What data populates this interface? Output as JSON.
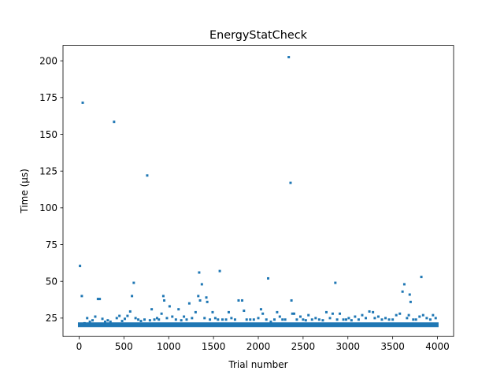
{
  "chart_data": {
    "type": "scatter",
    "title": "EnergyStatCheck",
    "xlabel": "Trial number",
    "ylabel": "Time (µs)",
    "xlim": [
      -180,
      4180
    ],
    "ylim": [
      12.5,
      210.5
    ],
    "xticks": [
      0,
      500,
      1000,
      1500,
      2000,
      2500,
      3000,
      3500,
      4000
    ],
    "yticks": [
      25,
      50,
      75,
      100,
      125,
      150,
      175,
      200
    ],
    "xtick_labels": [
      "0",
      "500",
      "1000",
      "1500",
      "2000",
      "2500",
      "3000",
      "3500",
      "4000"
    ],
    "ytick_labels": [
      "25",
      "50",
      "75",
      "100",
      "125",
      "150",
      "175",
      "200"
    ],
    "grid": false,
    "marker_color": "#1f77b4",
    "n_trials": 4000,
    "baseline": {
      "x_range": [
        0,
        3999
      ],
      "y": 20.5
    },
    "series": [
      {
        "points": [
          [
            10,
            60.5
          ],
          [
            30,
            40
          ],
          [
            40,
            171.5
          ],
          [
            60,
            21.5
          ],
          [
            90,
            25
          ],
          [
            120,
            22.5
          ],
          [
            150,
            23.5
          ],
          [
            180,
            26
          ],
          [
            210,
            38
          ],
          [
            230,
            38
          ],
          [
            260,
            24.5
          ],
          [
            290,
            22.5
          ],
          [
            320,
            23.5
          ],
          [
            350,
            22.5
          ],
          [
            390,
            158.5
          ],
          [
            420,
            25
          ],
          [
            450,
            26.5
          ],
          [
            480,
            23
          ],
          [
            510,
            24.5
          ],
          [
            540,
            26.5
          ],
          [
            570,
            29.5
          ],
          [
            590,
            40
          ],
          [
            610,
            49
          ],
          [
            630,
            25
          ],
          [
            660,
            24
          ],
          [
            690,
            23
          ],
          [
            730,
            24
          ],
          [
            760,
            122
          ],
          [
            790,
            23.5
          ],
          [
            810,
            31
          ],
          [
            840,
            24
          ],
          [
            870,
            25
          ],
          [
            890,
            24
          ],
          [
            920,
            28
          ],
          [
            940,
            40
          ],
          [
            950,
            37
          ],
          [
            980,
            25
          ],
          [
            1010,
            33
          ],
          [
            1040,
            26
          ],
          [
            1080,
            24
          ],
          [
            1110,
            31
          ],
          [
            1140,
            23.5
          ],
          [
            1170,
            26
          ],
          [
            1200,
            24
          ],
          [
            1230,
            35
          ],
          [
            1260,
            25
          ],
          [
            1300,
            29
          ],
          [
            1330,
            40
          ],
          [
            1340,
            56
          ],
          [
            1350,
            37
          ],
          [
            1370,
            48
          ],
          [
            1400,
            25
          ],
          [
            1420,
            39
          ],
          [
            1430,
            36
          ],
          [
            1460,
            24
          ],
          [
            1490,
            29
          ],
          [
            1520,
            25
          ],
          [
            1550,
            24
          ],
          [
            1570,
            57
          ],
          [
            1600,
            24
          ],
          [
            1640,
            24
          ],
          [
            1670,
            29
          ],
          [
            1700,
            25
          ],
          [
            1740,
            24
          ],
          [
            1780,
            37
          ],
          [
            1820,
            37
          ],
          [
            1840,
            30
          ],
          [
            1870,
            24
          ],
          [
            1910,
            24
          ],
          [
            1950,
            24
          ],
          [
            2000,
            25
          ],
          [
            2030,
            31
          ],
          [
            2050,
            28
          ],
          [
            2090,
            24
          ],
          [
            2110,
            52
          ],
          [
            2140,
            22.5
          ],
          [
            2180,
            24
          ],
          [
            2210,
            29
          ],
          [
            2240,
            26
          ],
          [
            2270,
            24
          ],
          [
            2300,
            24
          ],
          [
            2340,
            202.5
          ],
          [
            2360,
            117
          ],
          [
            2370,
            37
          ],
          [
            2380,
            28
          ],
          [
            2400,
            28
          ],
          [
            2430,
            24
          ],
          [
            2470,
            26
          ],
          [
            2500,
            24
          ],
          [
            2530,
            23.5
          ],
          [
            2560,
            27
          ],
          [
            2600,
            24
          ],
          [
            2640,
            25
          ],
          [
            2680,
            24
          ],
          [
            2720,
            23.5
          ],
          [
            2760,
            29
          ],
          [
            2800,
            25
          ],
          [
            2830,
            28
          ],
          [
            2860,
            49
          ],
          [
            2880,
            24
          ],
          [
            2910,
            28
          ],
          [
            2950,
            24
          ],
          [
            2980,
            24
          ],
          [
            3010,
            25
          ],
          [
            3040,
            23.5
          ],
          [
            3080,
            26
          ],
          [
            3120,
            24
          ],
          [
            3160,
            27
          ],
          [
            3200,
            25
          ],
          [
            3240,
            29.5
          ],
          [
            3280,
            29
          ],
          [
            3300,
            25
          ],
          [
            3340,
            26
          ],
          [
            3380,
            24
          ],
          [
            3420,
            25
          ],
          [
            3460,
            24
          ],
          [
            3500,
            24
          ],
          [
            3540,
            27
          ],
          [
            3580,
            28
          ],
          [
            3610,
            43
          ],
          [
            3630,
            48
          ],
          [
            3660,
            25
          ],
          [
            3680,
            27
          ],
          [
            3690,
            41
          ],
          [
            3700,
            36
          ],
          [
            3730,
            24
          ],
          [
            3760,
            24
          ],
          [
            3800,
            26
          ],
          [
            3820,
            53
          ],
          [
            3840,
            27
          ],
          [
            3880,
            25
          ],
          [
            3920,
            24
          ],
          [
            3950,
            27
          ],
          [
            3980,
            25
          ]
        ]
      }
    ]
  }
}
